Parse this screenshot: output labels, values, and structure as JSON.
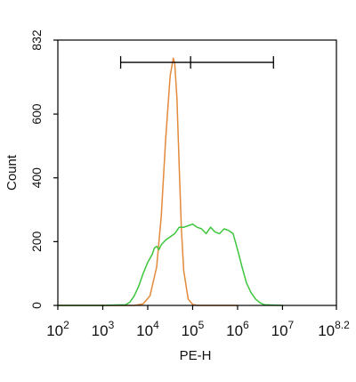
{
  "chart_data": {
    "type": "line",
    "title": "",
    "xlabel": "PE-H",
    "ylabel": "Count",
    "xscale": "log",
    "xlim_exponent": [
      2,
      8.2
    ],
    "x_ticks": [
      {
        "base": "10",
        "exp": "2",
        "value": 100
      },
      {
        "base": "10",
        "exp": "3",
        "value": 1000
      },
      {
        "base": "10",
        "exp": "4",
        "value": 10000
      },
      {
        "base": "10",
        "exp": "5",
        "value": 100000
      },
      {
        "base": "10",
        "exp": "6",
        "value": 1000000
      },
      {
        "base": "10",
        "exp": "7",
        "value": 10000000
      },
      {
        "base": "10",
        "exp": "8.2",
        "value": 158489319
      }
    ],
    "ylim": [
      0,
      832
    ],
    "y_ticks": [
      "0",
      "200",
      "400",
      "600",
      "832"
    ],
    "grid": false,
    "legend": "none",
    "gate": {
      "x_start": 2500,
      "x_marker": 90000,
      "x_end": 6300000,
      "y": 762
    },
    "series": [
      {
        "color": "#e38a3b",
        "x": [
          100,
          5000,
          7900,
          11200,
          15800,
          20000,
          25100,
          31600,
          37000,
          39800,
          44700,
          50100,
          56200,
          63100,
          79400,
          100000,
          125900,
          1000000
        ],
        "y": [
          0,
          0,
          5,
          30,
          120,
          280,
          520,
          720,
          775,
          760,
          650,
          440,
          240,
          110,
          20,
          3,
          0,
          0
        ]
      },
      {
        "color": "#3ec63e",
        "x": [
          100,
          1000,
          3200,
          4000,
          5000,
          6300,
          7900,
          10000,
          12600,
          14100,
          15800,
          17800,
          20000,
          25100,
          31600,
          39800,
          50100,
          63100,
          79400,
          100000,
          125900,
          158500,
          199500,
          251200,
          316200,
          398100,
          501200,
          631000,
          794300,
          1000000,
          1258900,
          1584900,
          2000000,
          2511900,
          3162300,
          3981100,
          10000000
        ],
        "y": [
          0,
          0,
          2,
          10,
          30,
          60,
          100,
          135,
          160,
          180,
          185,
          175,
          190,
          205,
          215,
          225,
          245,
          245,
          250,
          255,
          245,
          240,
          225,
          245,
          230,
          225,
          240,
          235,
          225,
          175,
          120,
          70,
          40,
          20,
          8,
          2,
          0
        ]
      }
    ]
  }
}
